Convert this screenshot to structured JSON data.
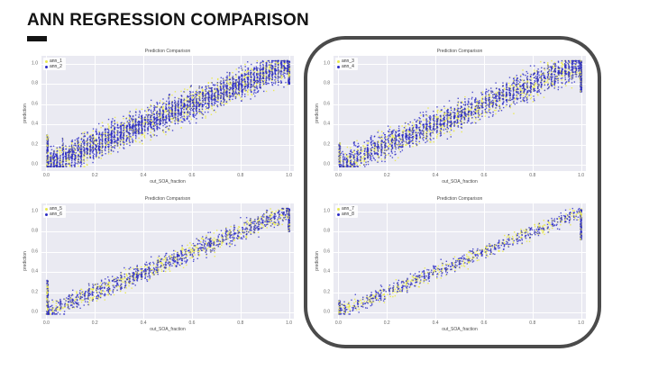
{
  "slide": {
    "title": "ANN REGRESSION COMPARISON",
    "accent_bar_color": "#141414",
    "background_color": "#ffffff"
  },
  "highlight": {
    "shape": "rounded-rectangle",
    "color": "#4b4b4b",
    "purpose": "emphasis around the right-hand column of charts"
  },
  "chart_data": [
    {
      "type": "scatter",
      "position": "top-left",
      "title": "Prediction Comparison",
      "xlabel": "out_SOA_fraction",
      "ylabel": "prediction",
      "x_ticks": [
        "0.0",
        "0.2",
        "0.4",
        "0.6",
        "0.8",
        "1.0"
      ],
      "y_ticks": [
        "0.0",
        "0.2",
        "0.4",
        "0.6",
        "0.8",
        "1.0"
      ],
      "xlim": [
        -0.02,
        1.02
      ],
      "ylim": [
        -0.06,
        1.08
      ],
      "grid": true,
      "plot_bg": "#eaeaf2",
      "legend_position": "upper-left",
      "relationship": "predicted value rises ~linearly with out_SOA_fraction; wide dense diagonal band with vertical striping and point pile-ups at x=0 and x=1",
      "series": [
        {
          "name": "ann_1",
          "color": "#e9e94f",
          "n": 1600,
          "noise": 0.07
        },
        {
          "name": "ann_2",
          "color": "#2c2cc4",
          "n": 2600,
          "noise": 0.07
        }
      ],
      "stripes": {
        "columns": 80,
        "p": 0.75
      },
      "edge_clusters": {
        "x0_n": 130,
        "x0_ymax": 0.3,
        "x1_n": 160,
        "x1_ymin": 0.8
      },
      "seed": 11
    },
    {
      "type": "scatter",
      "position": "top-right",
      "title": "Prediction Comparison",
      "xlabel": "out_SOA_fraction",
      "ylabel": "prediction",
      "x_ticks": [
        "0.0",
        "0.2",
        "0.4",
        "0.6",
        "0.8",
        "1.0"
      ],
      "y_ticks": [
        "0.0",
        "0.2",
        "0.4",
        "0.6",
        "0.8",
        "1.0"
      ],
      "xlim": [
        -0.02,
        1.02
      ],
      "ylim": [
        -0.06,
        1.08
      ],
      "grid": true,
      "plot_bg": "#eaeaf2",
      "legend_position": "upper-left",
      "relationship": "dense diagonal band, slightly tighter than top-left; strong vertical pile-up at x=1",
      "series": [
        {
          "name": "ann_3",
          "color": "#e9e94f",
          "n": 1200,
          "noise": 0.065
        },
        {
          "name": "ann_4",
          "color": "#2c2cc4",
          "n": 1800,
          "noise": 0.065
        }
      ],
      "stripes": {
        "columns": 70,
        "p": 0.7
      },
      "edge_clusters": {
        "x0_n": 90,
        "x0_ymax": 0.22,
        "x1_n": 220,
        "x1_ymin": 0.72
      },
      "seed": 22
    },
    {
      "type": "scatter",
      "position": "bottom-left",
      "title": "Prediction Comparison",
      "xlabel": "out_SOA_fraction",
      "ylabel": "prediction",
      "x_ticks": [
        "0.0",
        "0.2",
        "0.4",
        "0.6",
        "0.8",
        "1.0"
      ],
      "y_ticks": [
        "0.0",
        "0.2",
        "0.4",
        "0.6",
        "0.8",
        "1.0"
      ],
      "xlim": [
        -0.02,
        1.02
      ],
      "ylim": [
        -0.06,
        1.08
      ],
      "grid": true,
      "plot_bg": "#eaeaf2",
      "legend_position": "upper-left",
      "relationship": "medium-density tight diagonal band; vertical blue column at x=0 (y 0-0.3) and column at x=1",
      "series": [
        {
          "name": "ann_5",
          "color": "#e9e94f",
          "n": 750,
          "noise": 0.045
        },
        {
          "name": "ann_6",
          "color": "#2c2cc4",
          "n": 950,
          "noise": 0.045
        }
      ],
      "stripes": {
        "columns": 60,
        "p": 0.5
      },
      "edge_clusters": {
        "x0_n": 160,
        "x0_ymax": 0.32,
        "x1_n": 130,
        "x1_ymin": 0.8
      },
      "seed": 33
    },
    {
      "type": "scatter",
      "position": "bottom-right",
      "title": "Prediction Comparison",
      "xlabel": "out_SOA_fraction",
      "ylabel": "prediction",
      "x_ticks": [
        "0.0",
        "0.2",
        "0.4",
        "0.6",
        "0.8",
        "1.0"
      ],
      "y_ticks": [
        "0.0",
        "0.2",
        "0.4",
        "0.6",
        "0.8",
        "1.0"
      ],
      "xlim": [
        -0.02,
        1.02
      ],
      "ylim": [
        -0.06,
        1.08
      ],
      "grid": true,
      "plot_bg": "#eaeaf2",
      "legend_position": "upper-left",
      "relationship": "sparsest, tightest diagonal band; small pile-up at x=0 and tall blue column at x=1",
      "series": [
        {
          "name": "ann_7",
          "color": "#e9e94f",
          "n": 480,
          "noise": 0.035
        },
        {
          "name": "ann_8",
          "color": "#2c2cc4",
          "n": 580,
          "noise": 0.035
        }
      ],
      "stripes": {
        "columns": 55,
        "p": 0.5
      },
      "edge_clusters": {
        "x0_n": 60,
        "x0_ymax": 0.12,
        "x1_n": 140,
        "x1_ymin": 0.72
      },
      "seed": 44
    }
  ]
}
